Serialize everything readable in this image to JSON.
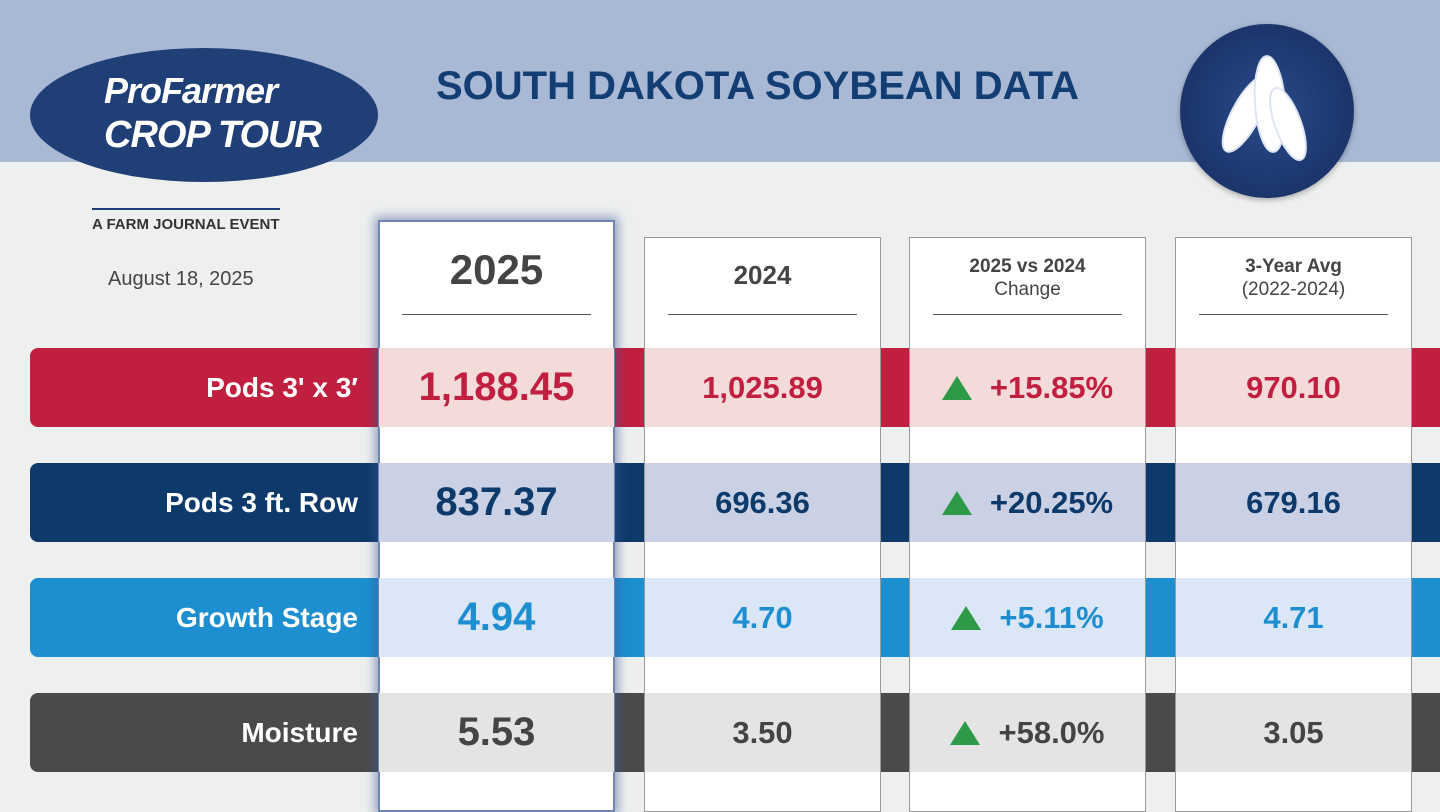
{
  "logo": {
    "brand": "ProFarmer",
    "event": "CROP TOUR",
    "tagline": "A FARM JOURNAL EVENT"
  },
  "title": "SOUTH DAKOTA SOYBEAN DATA",
  "date": "August 18, 2025",
  "columns": [
    {
      "label": "2025"
    },
    {
      "label": "2024"
    },
    {
      "label": "2025 vs 2024",
      "sublabel": "Change"
    },
    {
      "label": "3-Year Avg",
      "sublabel": "(2022-2024)"
    }
  ],
  "rows": [
    {
      "label": "Pods 3' x 3′",
      "cells": [
        "1,188.45",
        "1,025.89",
        "+15.85%",
        "970.10"
      ]
    },
    {
      "label": "Pods 3 ft. Row",
      "cells": [
        "837.37",
        "696.36",
        "+20.25%",
        "679.16"
      ]
    },
    {
      "label": "Growth Stage",
      "cells": [
        "4.94",
        "4.70",
        "+5.11%",
        "4.71"
      ]
    },
    {
      "label": "Moisture",
      "cells": [
        "5.53",
        "3.50",
        "+58.0%",
        "3.05"
      ]
    }
  ]
}
